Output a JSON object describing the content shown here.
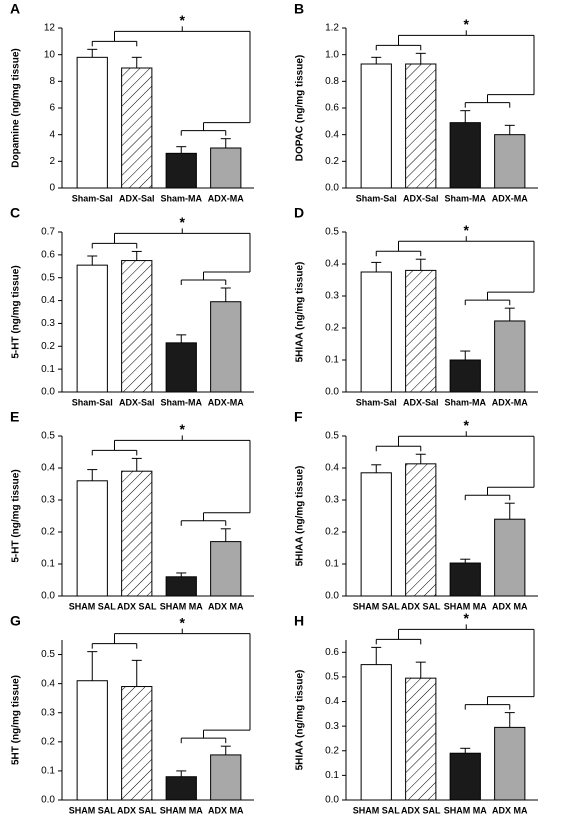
{
  "chart_data": [
    {
      "type": "bar",
      "label": "A",
      "annotation": "*",
      "ylabel": "Dopamine (ng/mg tissue)",
      "categories": [
        "Sham-Sal",
        "ADX-Sal",
        "Sham-MA",
        "ADX-MA"
      ],
      "values": [
        9.8,
        9.0,
        2.6,
        3.0
      ],
      "errors": [
        0.6,
        0.8,
        0.5,
        0.7
      ],
      "colors": [
        "#ffffff",
        "#ffffff",
        "#1a1a1a",
        "#a8a8a8"
      ],
      "patterns": [
        "none",
        "hatch",
        "none",
        "none"
      ],
      "ylim": [
        0,
        12
      ],
      "yticks": [
        0,
        2,
        4,
        6,
        8,
        10,
        12
      ]
    },
    {
      "type": "bar",
      "label": "B",
      "annotation": "*",
      "ylabel": "DOPAC (ng/mg tissue)",
      "categories": [
        "Sham-Sal",
        "ADX-Sal",
        "Sham-MA",
        "ADX-MA"
      ],
      "values": [
        0.93,
        0.93,
        0.49,
        0.4
      ],
      "errors": [
        0.05,
        0.08,
        0.09,
        0.07
      ],
      "colors": [
        "#ffffff",
        "#ffffff",
        "#1a1a1a",
        "#a8a8a8"
      ],
      "patterns": [
        "none",
        "hatch",
        "none",
        "none"
      ],
      "ylim": [
        0,
        1.2
      ],
      "yticks": [
        {
          "value": 0,
          "label": "0.0"
        },
        0.2,
        0.4,
        0.6,
        0.8,
        {
          "value": 1,
          "label": "1.0"
        },
        1.2
      ]
    },
    {
      "type": "bar",
      "label": "C",
      "annotation": "*",
      "ylabel": "5-HT (ng/mg tissue)",
      "categories": [
        "Sham-Sal",
        "ADX-Sal",
        "Sham-MA",
        "ADX-MA"
      ],
      "values": [
        0.555,
        0.575,
        0.215,
        0.395
      ],
      "errors": [
        0.04,
        0.04,
        0.035,
        0.06
      ],
      "colors": [
        "#ffffff",
        "#ffffff",
        "#1a1a1a",
        "#a8a8a8"
      ],
      "patterns": [
        "none",
        "hatch",
        "none",
        "none"
      ],
      "ylim": [
        0,
        0.7
      ],
      "yticks": [
        {
          "value": 0,
          "label": "0.0"
        },
        0.1,
        0.2,
        0.3,
        0.4,
        0.5,
        0.6,
        0.7
      ]
    },
    {
      "type": "bar",
      "label": "D",
      "annotation": "*",
      "ylabel": "5HIAA (ng/mg tissue)",
      "categories": [
        "Sham-Sal",
        "ADX-Sal",
        "Sham-MA",
        "ADX-MA"
      ],
      "values": [
        0.375,
        0.38,
        0.1,
        0.222
      ],
      "errors": [
        0.03,
        0.035,
        0.028,
        0.04
      ],
      "colors": [
        "#ffffff",
        "#ffffff",
        "#1a1a1a",
        "#a8a8a8"
      ],
      "patterns": [
        "none",
        "hatch",
        "none",
        "none"
      ],
      "ylim": [
        0,
        0.5
      ],
      "yticks": [
        {
          "value": 0,
          "label": "0.0"
        },
        0.1,
        0.2,
        0.3,
        0.4,
        0.5
      ]
    },
    {
      "type": "bar",
      "label": "E",
      "annotation": "*",
      "ylabel": "5-HT (ng/mg tissue)",
      "categories": [
        "SHAM SAL",
        "ADX SAL",
        "SHAM MA",
        "ADX MA"
      ],
      "values": [
        0.36,
        0.39,
        0.06,
        0.17
      ],
      "errors": [
        0.035,
        0.04,
        0.012,
        0.04
      ],
      "colors": [
        "#ffffff",
        "#ffffff",
        "#1a1a1a",
        "#a8a8a8"
      ],
      "patterns": [
        "none",
        "hatch",
        "none",
        "none"
      ],
      "ylim": [
        0,
        0.5
      ],
      "yticks": [
        {
          "value": 0,
          "label": "0.0"
        },
        0.1,
        0.2,
        0.3,
        0.4,
        0.5
      ]
    },
    {
      "type": "bar",
      "label": "F",
      "annotation": "*",
      "ylabel": "5HIAA (ng/mg tissue)",
      "categories": [
        "SHAM SAL",
        "ADX SAL",
        "SHAM MA",
        "ADX MA"
      ],
      "values": [
        0.385,
        0.413,
        0.103,
        0.24
      ],
      "errors": [
        0.025,
        0.03,
        0.012,
        0.05
      ],
      "colors": [
        "#ffffff",
        "#ffffff",
        "#1a1a1a",
        "#a8a8a8"
      ],
      "patterns": [
        "none",
        "hatch",
        "none",
        "none"
      ],
      "ylim": [
        0,
        0.5
      ],
      "yticks": [
        {
          "value": 0,
          "label": "0.0"
        },
        0.1,
        0.2,
        0.3,
        0.4,
        0.5
      ]
    },
    {
      "type": "bar",
      "label": "G",
      "annotation": "*",
      "ylabel": "5HT (ng/mg tissue)",
      "categories": [
        "SHAM SAL",
        "ADX SAL",
        "SHAM MA",
        "ADX MA"
      ],
      "values": [
        0.41,
        0.39,
        0.08,
        0.155
      ],
      "errors": [
        0.1,
        0.09,
        0.02,
        0.03
      ],
      "colors": [
        "#ffffff",
        "#ffffff",
        "#1a1a1a",
        "#a8a8a8"
      ],
      "patterns": [
        "none",
        "hatch",
        "none",
        "none"
      ],
      "ylim": [
        0,
        0.55
      ],
      "yticks": [
        {
          "value": 0,
          "label": "0.0"
        },
        0.1,
        0.2,
        0.3,
        0.4,
        0.5
      ]
    },
    {
      "type": "bar",
      "label": "H",
      "annotation": "*",
      "ylabel": "5HIAA (ng/mg tissue)",
      "categories": [
        "SHAM SAL",
        "ADX SAL",
        "SHAM MA",
        "ADX MA"
      ],
      "values": [
        0.55,
        0.495,
        0.19,
        0.295
      ],
      "errors": [
        0.07,
        0.065,
        0.02,
        0.06
      ],
      "colors": [
        "#ffffff",
        "#ffffff",
        "#1a1a1a",
        "#a8a8a8"
      ],
      "patterns": [
        "none",
        "hatch",
        "none",
        "none"
      ],
      "ylim": [
        0,
        0.65
      ],
      "yticks": [
        {
          "value": 0,
          "label": "0.0"
        },
        0.1,
        0.2,
        0.3,
        0.4,
        0.5,
        0.6
      ]
    }
  ]
}
